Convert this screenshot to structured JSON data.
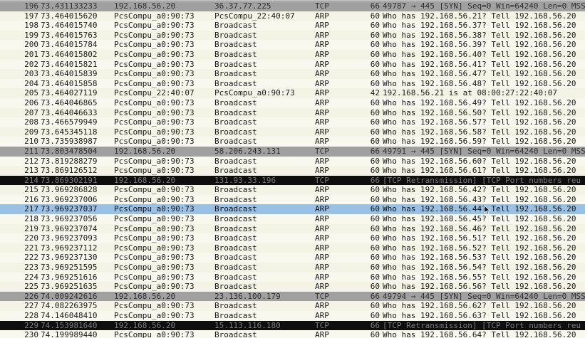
{
  "packet_list": {
    "rows": [
      {
        "no": "196",
        "time": "73.431133233",
        "src": "192.168.56.20",
        "dst": "36.37.77.225",
        "proto": "TCP",
        "len": "66",
        "info": "49787 → 445 [SYN] Seq=0 Win=64240 Len=0 MSS",
        "kind": "tcp-syn"
      },
      {
        "no": "197",
        "time": "73.464015620",
        "src": "PcsCompu_a0:90:73",
        "dst": "PcsCompu_22:40:07",
        "proto": "ARP",
        "len": "60",
        "info": "Who has 192.168.56.21? Tell 192.168.56.20",
        "kind": "arp"
      },
      {
        "no": "198",
        "time": "73.464015740",
        "src": "PcsCompu_a0:90:73",
        "dst": "Broadcast",
        "proto": "ARP",
        "len": "60",
        "info": "Who has 192.168.56.37? Tell 192.168.56.20",
        "kind": "arp"
      },
      {
        "no": "199",
        "time": "73.464015763",
        "src": "PcsCompu_a0:90:73",
        "dst": "Broadcast",
        "proto": "ARP",
        "len": "60",
        "info": "Who has 192.168.56.38? Tell 192.168.56.20",
        "kind": "arp"
      },
      {
        "no": "200",
        "time": "73.464015784",
        "src": "PcsCompu_a0:90:73",
        "dst": "Broadcast",
        "proto": "ARP",
        "len": "60",
        "info": "Who has 192.168.56.39? Tell 192.168.56.20",
        "kind": "arp"
      },
      {
        "no": "201",
        "time": "73.464015802",
        "src": "PcsCompu_a0:90:73",
        "dst": "Broadcast",
        "proto": "ARP",
        "len": "60",
        "info": "Who has 192.168.56.40? Tell 192.168.56.20",
        "kind": "arp"
      },
      {
        "no": "202",
        "time": "73.464015821",
        "src": "PcsCompu_a0:90:73",
        "dst": "Broadcast",
        "proto": "ARP",
        "len": "60",
        "info": "Who has 192.168.56.41? Tell 192.168.56.20",
        "kind": "arp"
      },
      {
        "no": "203",
        "time": "73.464015839",
        "src": "PcsCompu_a0:90:73",
        "dst": "Broadcast",
        "proto": "ARP",
        "len": "60",
        "info": "Who has 192.168.56.47? Tell 192.168.56.20",
        "kind": "arp"
      },
      {
        "no": "204",
        "time": "73.464015858",
        "src": "PcsCompu_a0:90:73",
        "dst": "Broadcast",
        "proto": "ARP",
        "len": "60",
        "info": "Who has 192.168.56.48? Tell 192.168.56.20",
        "kind": "arp"
      },
      {
        "no": "205",
        "time": "73.464027119",
        "src": "PcsCompu_22:40:07",
        "dst": "PcsCompu_a0:90:73",
        "proto": "ARP",
        "len": "42",
        "info": "192.168.56.21 is at 08:00:27:22:40:07",
        "kind": "arp"
      },
      {
        "no": "206",
        "time": "73.464046865",
        "src": "PcsCompu_a0:90:73",
        "dst": "Broadcast",
        "proto": "ARP",
        "len": "60",
        "info": "Who has 192.168.56.49? Tell 192.168.56.20",
        "kind": "arp"
      },
      {
        "no": "207",
        "time": "73.464046633",
        "src": "PcsCompu_a0:90:73",
        "dst": "Broadcast",
        "proto": "ARP",
        "len": "60",
        "info": "Who has 192.168.56.50? Tell 192.168.56.20",
        "kind": "arp"
      },
      {
        "no": "208",
        "time": "73.466579949",
        "src": "PcsCompu_a0:90:73",
        "dst": "Broadcast",
        "proto": "ARP",
        "len": "60",
        "info": "Who has 192.168.56.57? Tell 192.168.56.20",
        "kind": "arp"
      },
      {
        "no": "209",
        "time": "73.645345118",
        "src": "PcsCompu_a0:90:73",
        "dst": "Broadcast",
        "proto": "ARP",
        "len": "60",
        "info": "Who has 192.168.56.58? Tell 192.168.56.20",
        "kind": "arp"
      },
      {
        "no": "210",
        "time": "73.735938987",
        "src": "PcsCompu_a0:90:73",
        "dst": "Broadcast",
        "proto": "ARP",
        "len": "60",
        "info": "Who has 192.168.56.59? Tell 192.168.56.20",
        "kind": "arp"
      },
      {
        "no": "211",
        "time": "73.803478504",
        "src": "192.168.56.20",
        "dst": "58.206.243.131",
        "proto": "TCP",
        "len": "66",
        "info": "49791 → 445 [SYN] Seq=0 Win=64240 Len=0 MSS",
        "kind": "tcp-syn"
      },
      {
        "no": "212",
        "time": "73.819288279",
        "src": "PcsCompu_a0:90:73",
        "dst": "Broadcast",
        "proto": "ARP",
        "len": "60",
        "info": "Who has 192.168.56.60? Tell 192.168.56.20",
        "kind": "arp"
      },
      {
        "no": "213",
        "time": "73.869126512",
        "src": "PcsCompu_a0:90:73",
        "dst": "Broadcast",
        "proto": "ARP",
        "len": "60",
        "info": "Who has 192.168.56.61? Tell 192.168.56.20",
        "kind": "arp"
      },
      {
        "no": "214",
        "time": "73.869302191",
        "src": "192.168.56.20",
        "dst": "131.93.33.196",
        "proto": "TCP",
        "len": "66",
        "info": "[TCP Retransmission] [TCP Port numbers reu",
        "kind": "tcp-retrans"
      },
      {
        "no": "215",
        "time": "73.969286828",
        "src": "PcsCompu_a0:90:73",
        "dst": "Broadcast",
        "proto": "ARP",
        "len": "60",
        "info": "Who has 192.168.56.42? Tell 192.168.56.20",
        "kind": "arp"
      },
      {
        "no": "216",
        "time": "73.969237006",
        "src": "PcsCompu_a0:90:73",
        "dst": "Broadcast",
        "proto": "ARP",
        "len": "60",
        "info": "Who has 192.168.56.43? Tell 192.168.56.20",
        "kind": "arp"
      },
      {
        "no": "217",
        "time": "73.969237037",
        "src": "PcsCompu_a0:90:73",
        "dst": "Broadcast",
        "proto": "ARP",
        "len": "60",
        "info": "Who has 192.168.56.44? Tell 192.168.56.20",
        "kind": "selected"
      },
      {
        "no": "218",
        "time": "73.969237056",
        "src": "PcsCompu_a0:90:73",
        "dst": "Broadcast",
        "proto": "ARP",
        "len": "60",
        "info": "Who has 192.168.56.45? Tell 192.168.56.20",
        "kind": "arp"
      },
      {
        "no": "219",
        "time": "73.969237074",
        "src": "PcsCompu_a0:90:73",
        "dst": "Broadcast",
        "proto": "ARP",
        "len": "60",
        "info": "Who has 192.168.56.46? Tell 192.168.56.20",
        "kind": "arp"
      },
      {
        "no": "220",
        "time": "73.969237093",
        "src": "PcsCompu_a0:90:73",
        "dst": "Broadcast",
        "proto": "ARP",
        "len": "60",
        "info": "Who has 192.168.56.51? Tell 192.168.56.20",
        "kind": "arp"
      },
      {
        "no": "221",
        "time": "73.969237112",
        "src": "PcsCompu_a0:90:73",
        "dst": "Broadcast",
        "proto": "ARP",
        "len": "60",
        "info": "Who has 192.168.56.52? Tell 192.168.56.20",
        "kind": "arp"
      },
      {
        "no": "222",
        "time": "73.969237130",
        "src": "PcsCompu_a0:90:73",
        "dst": "Broadcast",
        "proto": "ARP",
        "len": "60",
        "info": "Who has 192.168.56.53? Tell 192.168.56.20",
        "kind": "arp"
      },
      {
        "no": "223",
        "time": "73.969251595",
        "src": "PcsCompu_a0:90:73",
        "dst": "Broadcast",
        "proto": "ARP",
        "len": "60",
        "info": "Who has 192.168.56.54? Tell 192.168.56.20",
        "kind": "arp"
      },
      {
        "no": "224",
        "time": "73.969251616",
        "src": "PcsCompu_a0:90:73",
        "dst": "Broadcast",
        "proto": "ARP",
        "len": "60",
        "info": "Who has 192.168.56.55? Tell 192.168.56.20",
        "kind": "arp"
      },
      {
        "no": "225",
        "time": "73.969251635",
        "src": "PcsCompu_a0:90:73",
        "dst": "Broadcast",
        "proto": "ARP",
        "len": "60",
        "info": "Who has 192.168.56.56? Tell 192.168.56.20",
        "kind": "arp"
      },
      {
        "no": "226",
        "time": "74.009242616",
        "src": "192.168.56.20",
        "dst": "23.136.100.179",
        "proto": "TCP",
        "len": "66",
        "info": "49794 → 445 [SYN] Seq=0 Win=64240 Len=0 MSS",
        "kind": "tcp-syn"
      },
      {
        "no": "227",
        "time": "74.082263975",
        "src": "PcsCompu_a0:90:73",
        "dst": "Broadcast",
        "proto": "ARP",
        "len": "60",
        "info": "Who has 192.168.56.62? Tell 192.168.56.20",
        "kind": "arp"
      },
      {
        "no": "228",
        "time": "74.146048410",
        "src": "PcsCompu_a0:90:73",
        "dst": "Broadcast",
        "proto": "ARP",
        "len": "60",
        "info": "Who has 192.168.56.63? Tell 192.168.56.20",
        "kind": "arp"
      },
      {
        "no": "229",
        "time": "74.153981640",
        "src": "192.168.56.20",
        "dst": "15.113.116.180",
        "proto": "TCP",
        "len": "66",
        "info": "[TCP Retransmission] [TCP Port numbers reu",
        "kind": "tcp-retrans"
      },
      {
        "no": "230",
        "time": "74.199989440",
        "src": "PcsCompu_a0:90:73",
        "dst": "Broadcast",
        "proto": "ARP",
        "len": "60",
        "info": "Who has 192.168.56.64? Tell 192.168.56.20",
        "kind": "arp"
      }
    ]
  },
  "colors": {
    "arp_row": "#f8f8ee",
    "tcp_syn_row": "#a0a0a0",
    "tcp_retrans_row": "#0e0e0e",
    "selected_row": "#98c1e5"
  },
  "icons": {
    "cursor": "mouse-pointer-icon"
  }
}
